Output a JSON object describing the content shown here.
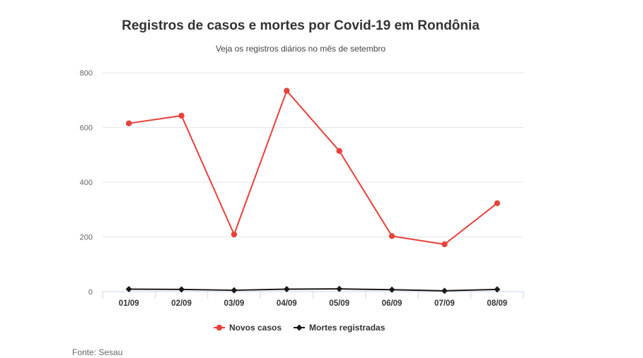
{
  "chart_data": {
    "type": "line",
    "title": "Registros de casos e mortes por Covid-19 em Rondônia",
    "subtitle": "Veja os registros diários no mês de setembro",
    "categories": [
      "01/09",
      "02/09",
      "03/09",
      "04/09",
      "05/09",
      "06/09",
      "07/09",
      "08/09"
    ],
    "y_ticks": [
      "0",
      "200",
      "400",
      "600",
      "800"
    ],
    "ylim": [
      0,
      800
    ],
    "grid": true,
    "legend_position": "bottom",
    "series": [
      {
        "name": "Novos casos",
        "color": "#e8413c",
        "marker": "circle",
        "values": [
          615,
          643,
          209,
          734,
          514,
          203,
          173,
          323
        ]
      },
      {
        "name": "Mortes registradas",
        "color": "#1a1a1a",
        "marker": "diamond",
        "values": [
          9,
          8,
          5,
          9,
          10,
          7,
          3,
          8
        ]
      }
    ]
  },
  "credits": "Fonte: Sesau"
}
